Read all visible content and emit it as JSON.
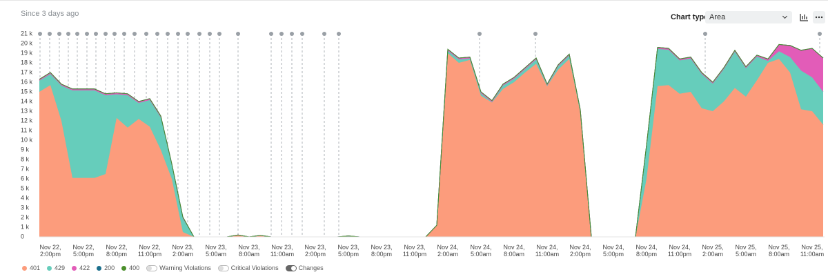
{
  "header": {
    "since": "Since 3 days ago",
    "chart_type_label": "Chart type",
    "chart_type_value": "Area"
  },
  "chart_data": {
    "type": "area",
    "stacked": true,
    "categories": [
      null,
      "Nov 22, 2:00pm",
      null,
      null,
      "Nov 22, 5:00pm",
      null,
      null,
      "Nov 22, 8:00pm",
      null,
      null,
      "Nov 22, 11:00pm",
      null,
      null,
      "Nov 23, 2:00am",
      null,
      null,
      "Nov 23, 5:00am",
      null,
      null,
      "Nov 23, 8:00am",
      null,
      null,
      "Nov 23, 11:00am",
      null,
      null,
      "Nov 23, 2:00pm",
      null,
      null,
      "Nov 23, 5:00pm",
      null,
      null,
      "Nov 23, 8:00pm",
      null,
      null,
      "Nov 23, 11:00pm",
      null,
      null,
      "Nov 24, 2:00am",
      null,
      null,
      "Nov 24, 5:00am",
      null,
      null,
      "Nov 24, 8:00am",
      null,
      null,
      "Nov 24, 11:00am",
      null,
      null,
      "Nov 24, 2:00pm",
      null,
      null,
      "Nov 24, 5:00pm",
      null,
      null,
      "Nov 24, 8:00pm",
      null,
      null,
      "Nov 24, 11:00pm",
      null,
      null,
      "Nov 25, 2:00am",
      null,
      null,
      "Nov 25, 5:00am",
      null,
      null,
      "Nov 25, 8:00am",
      null,
      null,
      "Nov 25, 11:00am",
      null
    ],
    "series": [
      {
        "name": "401",
        "color": "#fc9c7c",
        "values": [
          15000,
          15700,
          12000,
          6100,
          6100,
          6100,
          6500,
          12300,
          11300,
          12200,
          11400,
          9000,
          6000,
          500,
          0,
          0,
          0,
          0,
          200,
          0,
          150,
          0,
          0,
          0,
          0,
          0,
          0,
          0,
          100,
          0,
          0,
          0,
          0,
          0,
          0,
          0,
          1200,
          19000,
          18000,
          18300,
          14600,
          13900,
          15300,
          16000,
          17000,
          17900,
          15600,
          17300,
          18400,
          13000,
          0,
          0,
          0,
          0,
          0,
          6000,
          15600,
          15700,
          14800,
          15000,
          13300,
          13000,
          14000,
          15400,
          14500,
          16200,
          18000,
          18400,
          17000,
          13200,
          13000,
          11600
        ]
      },
      {
        "name": "429",
        "color": "#66cdbb",
        "values": [
          1150,
          1150,
          3650,
          9050,
          9050,
          9050,
          8150,
          2450,
          3350,
          1650,
          2750,
          3350,
          1400,
          1400,
          0,
          0,
          0,
          0,
          0,
          0,
          0,
          0,
          0,
          0,
          0,
          0,
          0,
          0,
          0,
          0,
          0,
          0,
          0,
          0,
          0,
          0,
          0,
          250,
          350,
          150,
          250,
          50,
          350,
          350,
          350,
          450,
          50,
          350,
          350,
          0,
          0,
          0,
          0,
          0,
          0,
          3400,
          3850,
          3650,
          3450,
          3450,
          3550,
          2850,
          3350,
          3750,
          2950,
          2450,
          200,
          800,
          1600,
          4000,
          3500,
          3400
        ]
      },
      {
        "name": "422",
        "color": "#e25cb8",
        "values": [
          150,
          150,
          150,
          150,
          150,
          150,
          150,
          150,
          150,
          150,
          150,
          150,
          150,
          150,
          0,
          0,
          0,
          0,
          0,
          0,
          0,
          0,
          0,
          0,
          0,
          0,
          0,
          0,
          0,
          0,
          0,
          0,
          0,
          0,
          0,
          0,
          0,
          150,
          150,
          150,
          150,
          150,
          150,
          150,
          150,
          150,
          150,
          150,
          150,
          150,
          0,
          0,
          0,
          0,
          0,
          100,
          150,
          150,
          150,
          150,
          150,
          150,
          150,
          150,
          150,
          150,
          200,
          700,
          1200,
          2100,
          3000,
          3500
        ]
      },
      {
        "name": "200",
        "color": "#1b6f8c",
        "values": [
          0,
          0,
          0,
          0,
          0,
          0,
          0,
          0,
          0,
          0,
          0,
          0,
          0,
          0,
          0,
          0,
          0,
          0,
          0,
          0,
          0,
          0,
          0,
          0,
          0,
          0,
          0,
          0,
          0,
          0,
          0,
          0,
          0,
          0,
          0,
          0,
          0,
          0,
          0,
          0,
          0,
          0,
          0,
          0,
          0,
          0,
          0,
          0,
          0,
          0,
          0,
          0,
          0,
          0,
          0,
          0,
          0,
          0,
          0,
          0,
          0,
          0,
          0,
          0,
          0,
          0,
          0,
          0,
          0,
          0,
          0,
          0
        ]
      },
      {
        "name": "400",
        "color": "#4b8f2c",
        "values": [
          0,
          0,
          0,
          0,
          0,
          0,
          0,
          0,
          0,
          0,
          0,
          0,
          0,
          0,
          0,
          0,
          0,
          0,
          0,
          0,
          0,
          0,
          0,
          0,
          0,
          0,
          0,
          0,
          0,
          0,
          0,
          0,
          0,
          0,
          0,
          0,
          0,
          0,
          0,
          0,
          0,
          0,
          0,
          0,
          0,
          0,
          0,
          0,
          0,
          0,
          0,
          0,
          0,
          0,
          0,
          0,
          0,
          0,
          0,
          0,
          0,
          0,
          0,
          0,
          0,
          0,
          0,
          0,
          0,
          0,
          0,
          0
        ]
      }
    ],
    "ylim": [
      0,
      21000
    ],
    "yticks": [
      0,
      {
        "value": 1000,
        "label": "1 k"
      },
      {
        "value": 2000,
        "label": "2 k"
      },
      {
        "value": 3000,
        "label": "3 k"
      },
      {
        "value": 4000,
        "label": "4 k"
      },
      {
        "value": 5000,
        "label": "5 k"
      },
      {
        "value": 6000,
        "label": "6 k"
      },
      {
        "value": 7000,
        "label": "7 k"
      },
      {
        "value": 8000,
        "label": "8 k"
      },
      {
        "value": 9000,
        "label": "9 k"
      },
      {
        "value": 10000,
        "label": "10 k"
      },
      {
        "value": 11000,
        "label": "11 k"
      },
      {
        "value": 12000,
        "label": "12 k"
      },
      {
        "value": 13000,
        "label": "13 k"
      },
      {
        "value": 14000,
        "label": "14 k"
      },
      {
        "value": 15000,
        "label": "15 k"
      },
      {
        "value": 16000,
        "label": "16 k"
      },
      {
        "value": 17000,
        "label": "17 k"
      },
      {
        "value": 18000,
        "label": "18 k"
      },
      {
        "value": 19000,
        "label": "19 k"
      },
      {
        "value": 20000,
        "label": "20 k"
      },
      {
        "value": 21000,
        "label": "21 k"
      }
    ],
    "grid": false
  },
  "toggles": [
    "Warning Violations",
    "Critical Violations",
    "Changes"
  ]
}
